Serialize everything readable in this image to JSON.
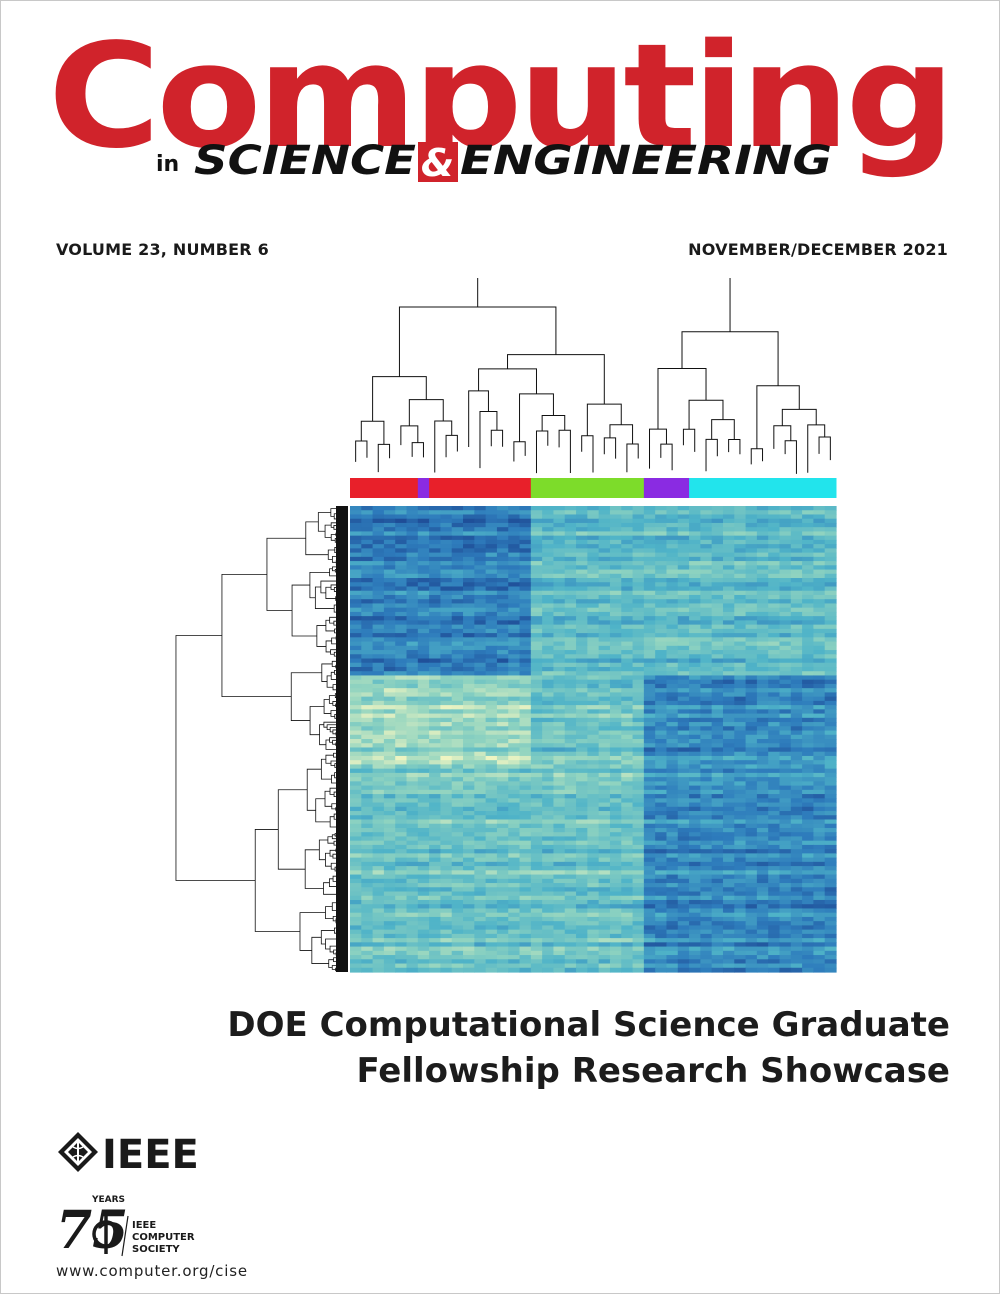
{
  "masthead": {
    "title": "Computing",
    "in": "in",
    "science": "SCIENCE",
    "amp": "&",
    "engineering": "ENGINEERING",
    "brand_color": "#d0232b"
  },
  "issue": {
    "volume": "VOLUME 23, NUMBER 6",
    "date": "NOVEMBER/DECEMBER 2021"
  },
  "cover_image": {
    "type": "heatmap",
    "colormap": [
      "#f0f5c2",
      "#8fd3c0",
      "#4fb3c8",
      "#2e7cbc",
      "#1a3f8c"
    ],
    "column_groups": [
      {
        "color": "#e8202a",
        "columns": 6
      },
      {
        "color": "#8a2be2",
        "columns": 1
      },
      {
        "color": "#e8202a",
        "columns": 9
      },
      {
        "color": "#7ddc2a",
        "columns": 10
      },
      {
        "color": "#8a2be2",
        "columns": 4
      },
      {
        "color": "#22e4ec",
        "columns": 13
      }
    ]
  },
  "headline": {
    "line1": "DOE Computational Science Graduate",
    "line2": "Fellowship Research Showcase"
  },
  "footer": {
    "ieee": "IEEE",
    "cs_years_number": "75",
    "cs_years_label": "YEARS",
    "cs_line1": "IEEE",
    "cs_line2": "COMPUTER",
    "cs_line3": "SOCIETY",
    "url": "www.computer.org/cise"
  }
}
